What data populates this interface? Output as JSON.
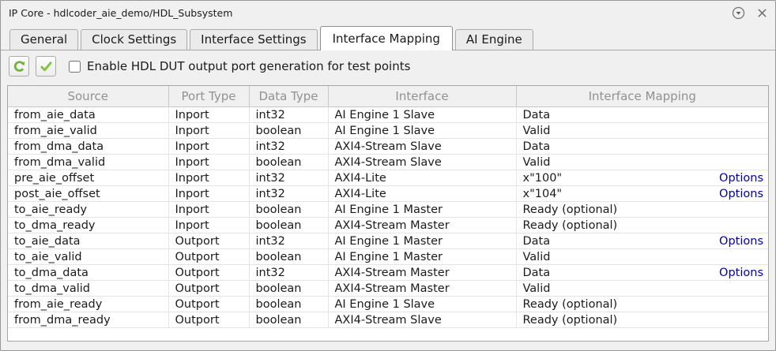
{
  "window": {
    "title": "IP Core - hdlcoder_aie_demo/HDL_Subsystem"
  },
  "titlebar": {
    "icons": [
      {
        "name": "collapse-circle-icon"
      },
      {
        "name": "close-icon"
      }
    ]
  },
  "tabs": [
    {
      "label": "General",
      "active": false
    },
    {
      "label": "Clock Settings",
      "active": false
    },
    {
      "label": "Interface Settings",
      "active": false
    },
    {
      "label": "Interface Mapping",
      "active": true
    },
    {
      "label": "AI Engine",
      "active": false
    }
  ],
  "toolbar": {
    "refresh_icon": "refresh-icon",
    "apply_icon": "check-icon",
    "checkbox_checked": false,
    "checkbox_label": "Enable HDL DUT output port generation for test points"
  },
  "table": {
    "headers": [
      "Source",
      "Port Type",
      "Data Type",
      "Interface",
      "Interface Mapping"
    ],
    "options_label": "Options",
    "rows": [
      {
        "source": "from_aie_data",
        "port_type": "Inport",
        "data_type": "int32",
        "interface": "AI Engine 1 Slave",
        "mapping": "Data",
        "options": false
      },
      {
        "source": "from_aie_valid",
        "port_type": "Inport",
        "data_type": "boolean",
        "interface": "AI Engine 1 Slave",
        "mapping": "Valid",
        "options": false
      },
      {
        "source": "from_dma_data",
        "port_type": "Inport",
        "data_type": "int32",
        "interface": "AXI4-Stream Slave",
        "mapping": "Data",
        "options": false
      },
      {
        "source": "from_dma_valid",
        "port_type": "Inport",
        "data_type": "boolean",
        "interface": "AXI4-Stream Slave",
        "mapping": "Valid",
        "options": false
      },
      {
        "source": "pre_aie_offset",
        "port_type": "Inport",
        "data_type": "int32",
        "interface": "AXI4-Lite",
        "mapping": "x\"100\"",
        "options": true
      },
      {
        "source": "post_aie_offset",
        "port_type": "Inport",
        "data_type": "int32",
        "interface": "AXI4-Lite",
        "mapping": "x\"104\"",
        "options": true
      },
      {
        "source": "to_aie_ready",
        "port_type": "Inport",
        "data_type": "boolean",
        "interface": "AI Engine 1 Master",
        "mapping": "Ready (optional)",
        "options": false
      },
      {
        "source": "to_dma_ready",
        "port_type": "Inport",
        "data_type": "boolean",
        "interface": "AXI4-Stream Master",
        "mapping": "Ready (optional)",
        "options": false
      },
      {
        "source": "to_aie_data",
        "port_type": "Outport",
        "data_type": "int32",
        "interface": "AI Engine 1 Master",
        "mapping": "Data",
        "options": true
      },
      {
        "source": "to_aie_valid",
        "port_type": "Outport",
        "data_type": "boolean",
        "interface": "AI Engine 1 Master",
        "mapping": "Valid",
        "options": false
      },
      {
        "source": "to_dma_data",
        "port_type": "Outport",
        "data_type": "int32",
        "interface": "AXI4-Stream Master",
        "mapping": "Data",
        "options": true
      },
      {
        "source": "to_dma_valid",
        "port_type": "Outport",
        "data_type": "boolean",
        "interface": "AXI4-Stream Master",
        "mapping": "Valid",
        "options": false
      },
      {
        "source": "from_aie_ready",
        "port_type": "Outport",
        "data_type": "boolean",
        "interface": "AI Engine 1 Slave",
        "mapping": "Ready (optional)",
        "options": false
      },
      {
        "source": "from_dma_ready",
        "port_type": "Outport",
        "data_type": "boolean",
        "interface": "AXI4-Stream Slave",
        "mapping": "Ready (optional)",
        "options": false
      }
    ]
  },
  "colors": {
    "window_bg": "#f0f0f0",
    "active_tab_bg": "#ffffff",
    "header_text": "#919191",
    "options_link": "#00009e",
    "icon_green": "#76b041",
    "grid_line": "#e4e4e4"
  }
}
